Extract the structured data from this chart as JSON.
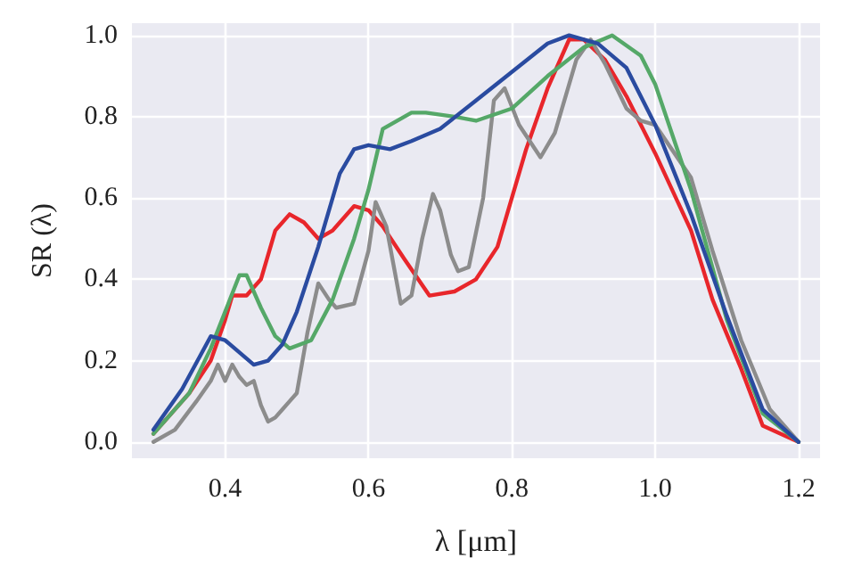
{
  "chart_data": {
    "type": "line",
    "xlabel": "λ [μm]",
    "ylabel": "SR (λ)",
    "xlim": [
      0.27,
      1.23
    ],
    "ylim": [
      -0.04,
      1.03
    ],
    "xticks": [
      0.4,
      0.6,
      0.8,
      {
        "value": 1,
        "label": "1.0"
      },
      1.2
    ],
    "yticks": [
      {
        "value": 0,
        "label": "0.0"
      },
      0.2,
      0.4,
      0.6,
      0.8,
      {
        "value": 1,
        "label": "1.0"
      }
    ],
    "grid": true,
    "marker": "none",
    "line_style": "solid",
    "series": [
      {
        "color": "#e8262b",
        "x": [
          0.3,
          0.35,
          0.38,
          0.4,
          0.41,
          0.43,
          0.45,
          0.47,
          0.49,
          0.51,
          0.53,
          0.55,
          0.58,
          0.6,
          0.62,
          0.65,
          0.685,
          0.72,
          0.75,
          0.78,
          0.8,
          0.82,
          0.85,
          0.88,
          0.9,
          0.93,
          0.96,
          1.0,
          1.05,
          1.08,
          1.12,
          1.15,
          1.2
        ],
        "values": [
          0.02,
          0.12,
          0.2,
          0.3,
          0.36,
          0.36,
          0.4,
          0.52,
          0.56,
          0.54,
          0.5,
          0.52,
          0.58,
          0.57,
          0.53,
          0.45,
          0.36,
          0.37,
          0.4,
          0.48,
          0.6,
          0.72,
          0.87,
          0.99,
          0.99,
          0.94,
          0.85,
          0.71,
          0.52,
          0.35,
          0.18,
          0.04,
          0.0
        ]
      },
      {
        "color": "#8c8c8c",
        "x": [
          0.3,
          0.33,
          0.36,
          0.38,
          0.39,
          0.4,
          0.41,
          0.42,
          0.43,
          0.44,
          0.45,
          0.46,
          0.47,
          0.48,
          0.49,
          0.5,
          0.515,
          0.53,
          0.545,
          0.555,
          0.58,
          0.6,
          0.61,
          0.625,
          0.645,
          0.66,
          0.675,
          0.69,
          0.7,
          0.715,
          0.725,
          0.74,
          0.76,
          0.775,
          0.79,
          0.81,
          0.84,
          0.86,
          0.89,
          0.91,
          0.93,
          0.96,
          0.98,
          1.0,
          1.05,
          1.08,
          1.12,
          1.16,
          1.2
        ],
        "values": [
          0.0,
          0.03,
          0.1,
          0.15,
          0.19,
          0.15,
          0.19,
          0.16,
          0.14,
          0.15,
          0.09,
          0.05,
          0.06,
          0.08,
          0.1,
          0.12,
          0.27,
          0.39,
          0.35,
          0.33,
          0.34,
          0.47,
          0.59,
          0.53,
          0.34,
          0.36,
          0.5,
          0.61,
          0.57,
          0.46,
          0.42,
          0.43,
          0.6,
          0.84,
          0.87,
          0.78,
          0.7,
          0.76,
          0.94,
          0.99,
          0.93,
          0.82,
          0.79,
          0.78,
          0.65,
          0.47,
          0.25,
          0.08,
          0.0
        ]
      },
      {
        "color": "#55a868",
        "x": [
          0.3,
          0.35,
          0.38,
          0.4,
          0.42,
          0.43,
          0.45,
          0.47,
          0.49,
          0.52,
          0.55,
          0.58,
          0.6,
          0.62,
          0.66,
          0.68,
          0.72,
          0.75,
          0.8,
          0.85,
          0.9,
          0.94,
          0.98,
          1.0,
          1.05,
          1.1,
          1.15,
          1.2
        ],
        "values": [
          0.02,
          0.12,
          0.23,
          0.32,
          0.41,
          0.41,
          0.33,
          0.26,
          0.23,
          0.25,
          0.35,
          0.5,
          0.62,
          0.77,
          0.81,
          0.81,
          0.8,
          0.79,
          0.82,
          0.9,
          0.97,
          1.0,
          0.95,
          0.88,
          0.62,
          0.3,
          0.07,
          0.0
        ]
      },
      {
        "color": "#2a4ba0",
        "x": [
          0.3,
          0.34,
          0.38,
          0.4,
          0.44,
          0.46,
          0.48,
          0.5,
          0.53,
          0.56,
          0.58,
          0.6,
          0.63,
          0.66,
          0.7,
          0.75,
          0.8,
          0.85,
          0.88,
          0.92,
          0.96,
          1.0,
          1.05,
          1.1,
          1.15,
          1.2
        ],
        "values": [
          0.03,
          0.13,
          0.26,
          0.25,
          0.19,
          0.2,
          0.24,
          0.32,
          0.48,
          0.66,
          0.72,
          0.73,
          0.72,
          0.74,
          0.77,
          0.84,
          0.91,
          0.98,
          1.0,
          0.98,
          0.92,
          0.78,
          0.56,
          0.31,
          0.08,
          0.0
        ]
      }
    ]
  }
}
